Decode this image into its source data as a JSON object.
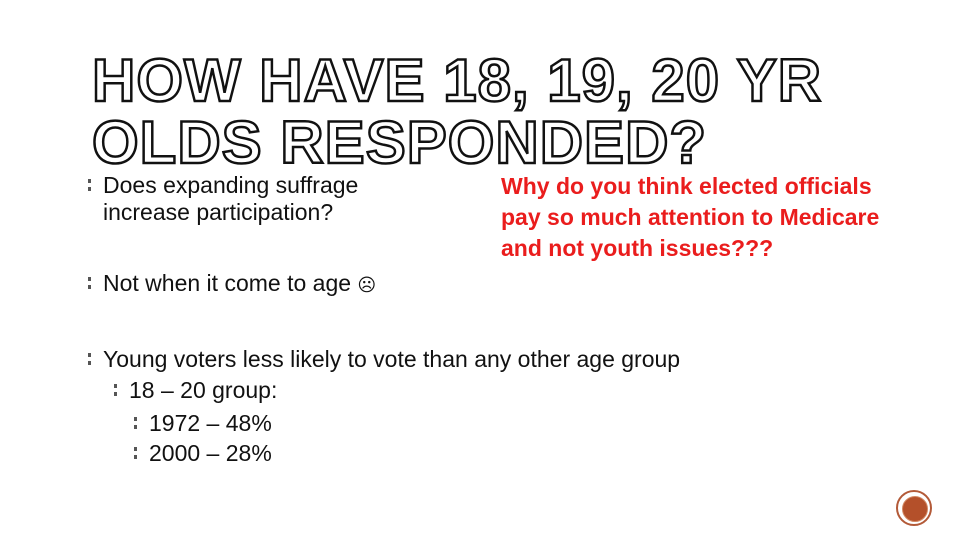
{
  "title": {
    "line1": "HOW HAVE 18, 19, 20 YR",
    "line2": "OLDS RESPONDED?"
  },
  "bullets": {
    "b1": "Does expanding suffrage increase participation?",
    "b2": "Not when it come to age",
    "b2_icon": "frown-face-icon",
    "b3": "Young voters less likely to vote than any other age group",
    "b4": "18 – 20 group:",
    "b5": "1972 – 48%",
    "b6": "2000 – 28%"
  },
  "callout": {
    "text": "Why do you think elected officials pay so much attention to Medicare and not youth issues???",
    "color": "#ea1d1d"
  },
  "badge": {
    "icon": "slide-badge-icon",
    "color": "#b4502a"
  }
}
